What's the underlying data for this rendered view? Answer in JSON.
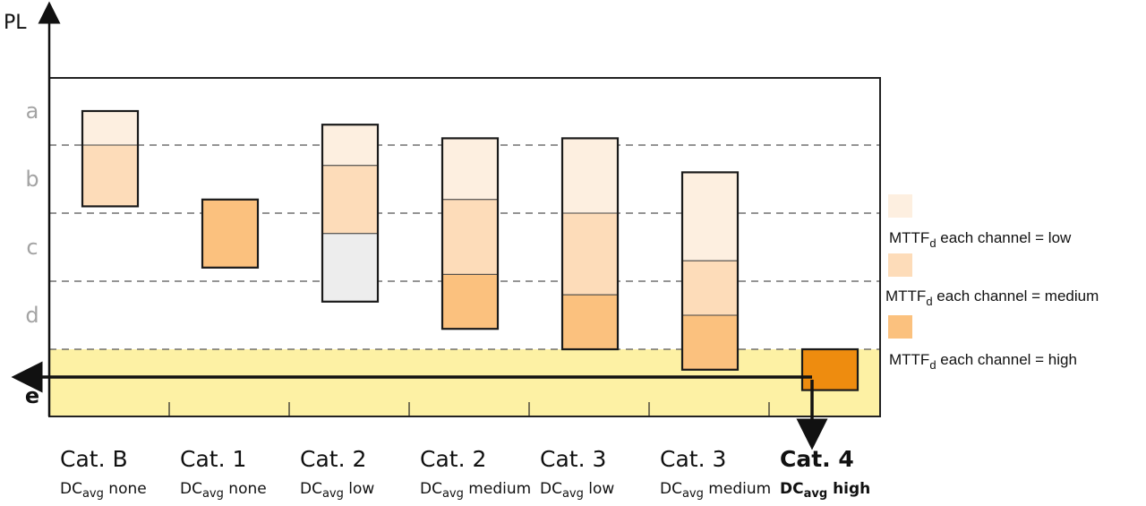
{
  "chart_data": {
    "type": "diagram",
    "y_axis": {
      "title": "PL",
      "levels": [
        "a",
        "b",
        "c",
        "d",
        "e"
      ],
      "highlighted_level": "e"
    },
    "categories": [
      {
        "cat": "Cat. B",
        "dc_prefix": "DC",
        "dc_sub": "avg",
        "dc_level": "none",
        "segments": [
          {
            "mttfd": "low",
            "from": 0.5,
            "to": 1.0
          },
          {
            "mttfd": "medium",
            "from": 1.0,
            "to": 1.9
          }
        ]
      },
      {
        "cat": "Cat. 1",
        "dc_prefix": "DC",
        "dc_sub": "avg",
        "dc_level": "none",
        "segments": [
          {
            "mttfd": "high",
            "from": 1.8,
            "to": 2.8
          }
        ]
      },
      {
        "cat": "Cat. 2",
        "dc_prefix": "DC",
        "dc_sub": "avg",
        "dc_level": "low",
        "segments": [
          {
            "mttfd": "low",
            "from": 0.7,
            "to": 1.3
          },
          {
            "mttfd": "medium",
            "from": 1.3,
            "to": 2.3
          },
          {
            "mttfd": "none",
            "from": 2.3,
            "to": 3.3
          }
        ]
      },
      {
        "cat": "Cat. 2",
        "dc_prefix": "DC",
        "dc_sub": "avg",
        "dc_level": "medium",
        "segments": [
          {
            "mttfd": "low",
            "from": 0.9,
            "to": 1.8
          },
          {
            "mttfd": "medium",
            "from": 1.8,
            "to": 2.9
          },
          {
            "mttfd": "high",
            "from": 2.9,
            "to": 3.7
          }
        ]
      },
      {
        "cat": "Cat. 3",
        "dc_prefix": "DC",
        "dc_sub": "avg",
        "dc_level": "low",
        "segments": [
          {
            "mttfd": "low",
            "from": 0.9,
            "to": 2.0
          },
          {
            "mttfd": "medium",
            "from": 2.0,
            "to": 3.2
          },
          {
            "mttfd": "high",
            "from": 3.2,
            "to": 4.0
          }
        ]
      },
      {
        "cat": "Cat. 3",
        "dc_prefix": "DC",
        "dc_sub": "avg",
        "dc_level": "medium",
        "segments": [
          {
            "mttfd": "low",
            "from": 1.4,
            "to": 2.7
          },
          {
            "mttfd": "medium",
            "from": 2.7,
            "to": 3.5
          },
          {
            "mttfd": "high",
            "from": 3.5,
            "to": 4.3
          }
        ]
      },
      {
        "cat": "Cat. 4",
        "dc_prefix": "DC",
        "dc_sub": "avg",
        "dc_level": "high",
        "highlight": true,
        "segments": [
          {
            "mttfd": "highest",
            "from": 4.0,
            "to": 4.6
          }
        ]
      }
    ],
    "legend": [
      {
        "key": "low",
        "prefix": "MTTF",
        "sub": "d",
        "suffix": " each channel = low"
      },
      {
        "key": "medium",
        "prefix": "MTTF",
        "sub": "d",
        "suffix": " each channel = medium"
      },
      {
        "key": "high",
        "prefix": "MTTF",
        "sub": "d",
        "suffix": " each channel = high"
      }
    ],
    "colors": {
      "low": "#fdefe0",
      "medium": "#fddcb9",
      "high": "#fbc17e",
      "highest": "#ee8c0f",
      "none": "#ededed",
      "zone_e": "#fdf1a4",
      "frame": "#222222",
      "gridline": "#555555"
    }
  }
}
